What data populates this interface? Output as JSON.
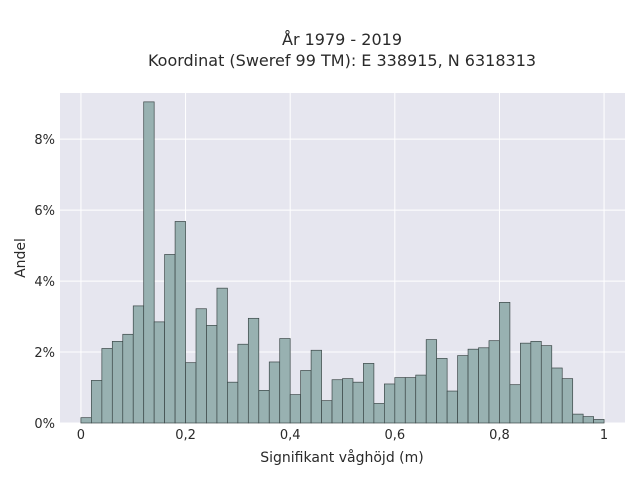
{
  "chart_data": {
    "type": "bar",
    "title_lines": [
      "År 1979 - 2019",
      "Koordinat (Sweref 99 TM): E 338915, N 6318313"
    ],
    "xlabel": "Signifikant våghöjd (m)",
    "ylabel": "Andel",
    "xlim": [
      -0.04,
      1.04
    ],
    "ylim": [
      0,
      9.3
    ],
    "x_ticks": [
      0,
      0.2,
      0.4,
      0.6,
      0.8,
      1
    ],
    "x_tick_labels": [
      "0",
      "0,2",
      "0,4",
      "0,6",
      "0,8",
      "1"
    ],
    "y_ticks": [
      0,
      2,
      4,
      6,
      8
    ],
    "y_tick_labels": [
      "0%",
      "2%",
      "4%",
      "6%",
      "8%"
    ],
    "bin_start": 0.0,
    "bin_width": 0.02,
    "values": [
      0.15,
      1.2,
      2.1,
      2.3,
      2.5,
      3.3,
      9.05,
      2.85,
      4.75,
      5.68,
      1.7,
      3.22,
      2.75,
      3.8,
      1.15,
      2.22,
      2.95,
      0.92,
      1.72,
      2.38,
      0.8,
      1.48,
      2.05,
      0.63,
      1.22,
      1.25,
      1.15,
      1.68,
      0.55,
      1.1,
      1.28,
      1.28,
      1.35,
      2.35,
      1.82,
      0.9,
      1.9,
      2.08,
      2.12,
      2.32,
      3.4,
      1.08,
      2.25,
      2.3,
      2.18,
      1.55,
      1.25,
      0.25,
      0.18,
      0.1
    ],
    "grid": true,
    "bar_color": "#98b1b1",
    "edge_color": "#3b4747",
    "plot_background": "#e6e6ef"
  }
}
